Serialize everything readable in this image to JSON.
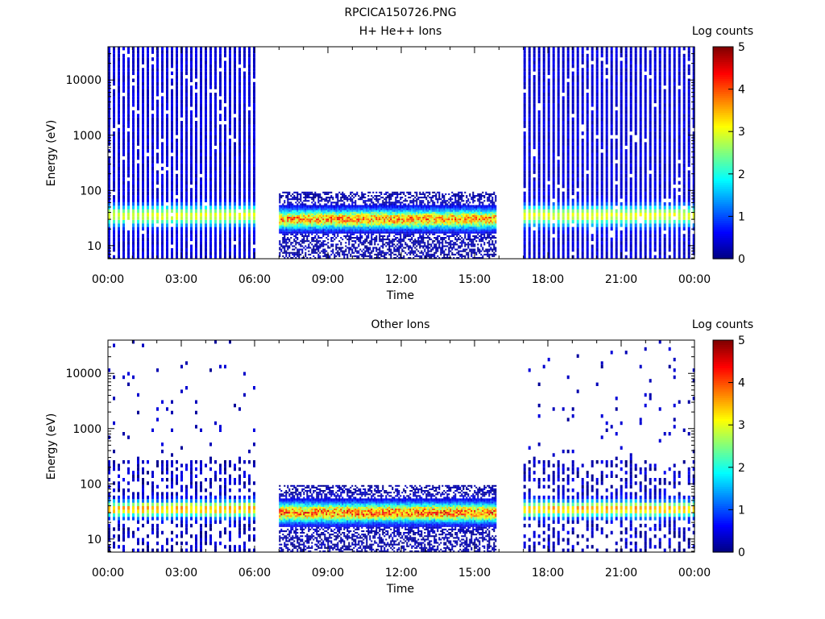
{
  "figure_title": "RPCICA150726.PNG",
  "colors": {
    "colormap": [
      "#00007f",
      "#0000ff",
      "#007fff",
      "#00ffff",
      "#7fff7f",
      "#ffff00",
      "#ff7f00",
      "#ff0000",
      "#7f0000"
    ]
  },
  "chart_data": [
    {
      "type": "heatmap",
      "title": "H+ He++ Ions",
      "xlabel": "Time",
      "ylabel": "Energy (eV)",
      "x_ticks": [
        "00:00",
        "03:00",
        "06:00",
        "09:00",
        "12:00",
        "15:00",
        "18:00",
        "21:00",
        "00:00"
      ],
      "x_range_hours": [
        0,
        24
      ],
      "y_scale": "log",
      "y_range": [
        5.8,
        40000
      ],
      "y_ticks": [
        "10",
        "100",
        "1000",
        "10000"
      ],
      "colorbar_label": "Log counts",
      "colorbar_range": [
        0,
        5
      ],
      "colorbar_ticks": [
        "0",
        "1",
        "2",
        "3",
        "4",
        "5"
      ],
      "segments": [
        {
          "start_hour": 0.0,
          "end_hour": 6.0,
          "mode": "sweep",
          "e_max": 40000,
          "peak_energy_eV": 35,
          "peak_log_counts": 2.6
        },
        {
          "start_hour": 7.0,
          "end_hour": 15.9,
          "mode": "low",
          "e_max": 95,
          "peak_energy_eV": 30,
          "peak_log_counts": 3.6
        },
        {
          "start_hour": 17.0,
          "end_hour": 24.0,
          "mode": "sweep",
          "e_max": 40000,
          "peak_energy_eV": 35,
          "peak_log_counts": 2.6
        }
      ]
    },
    {
      "type": "heatmap",
      "title": "Other Ions",
      "xlabel": "Time",
      "ylabel": "Energy (eV)",
      "x_ticks": [
        "00:00",
        "03:00",
        "06:00",
        "09:00",
        "12:00",
        "15:00",
        "18:00",
        "21:00",
        "00:00"
      ],
      "x_range_hours": [
        0,
        24
      ],
      "y_scale": "log",
      "y_range": [
        5.8,
        40000
      ],
      "y_ticks": [
        "10",
        "100",
        "1000",
        "10000"
      ],
      "colorbar_label": "Log counts",
      "colorbar_range": [
        0,
        5
      ],
      "colorbar_ticks": [
        "0",
        "1",
        "2",
        "3",
        "4",
        "5"
      ],
      "segments": [
        {
          "start_hour": 0.0,
          "end_hour": 6.0,
          "mode": "sparse",
          "e_max": 40000,
          "peak_energy_eV": 35,
          "peak_log_counts": 3.2
        },
        {
          "start_hour": 7.0,
          "end_hour": 15.9,
          "mode": "low",
          "e_max": 95,
          "peak_energy_eV": 30,
          "peak_log_counts": 3.8
        },
        {
          "start_hour": 17.0,
          "end_hour": 24.0,
          "mode": "sparse",
          "e_max": 40000,
          "peak_energy_eV": 35,
          "peak_log_counts": 3.2
        }
      ]
    }
  ]
}
